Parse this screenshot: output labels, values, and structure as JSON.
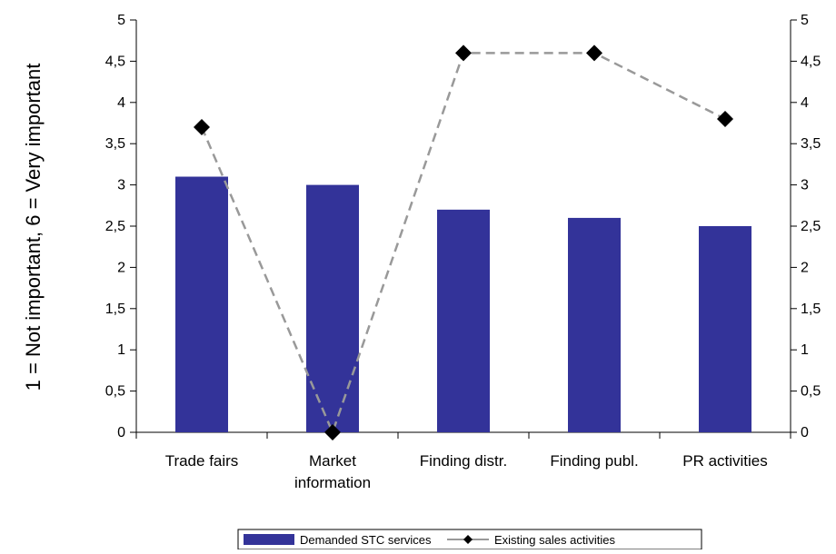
{
  "chart_data": {
    "type": "bar",
    "title": "",
    "ylabel": "1 = Not important,  6 = Very important",
    "xlabel": "",
    "categories": [
      [
        "Trade fairs"
      ],
      [
        "Market",
        "information"
      ],
      [
        "Finding distr."
      ],
      [
        "Finding publ."
      ],
      [
        "PR activities"
      ]
    ],
    "ylim": [
      0,
      5
    ],
    "y_ticks": [
      "0",
      "0,5",
      "1",
      "1,5",
      "2",
      "2,5",
      "3",
      "3,5",
      "4",
      "4,5",
      "5"
    ],
    "y2_ticks": [
      "0",
      "0,5",
      "1",
      "1,5",
      "2",
      "2,5",
      "3",
      "3,5",
      "4",
      "4,5",
      "5"
    ],
    "y2lim": [
      0,
      5
    ],
    "grid": false,
    "legend_position": "bottom",
    "series": [
      {
        "name": "Demanded STC services",
        "type": "bar",
        "color": "#333399",
        "values": [
          3.1,
          3.0,
          2.7,
          2.6,
          2.5
        ]
      },
      {
        "name": "Existing sales activities",
        "type": "line",
        "line_style": "dashed",
        "line_color": "#999999",
        "marker": "diamond",
        "marker_color": "#000000",
        "values": [
          3.7,
          0.0,
          4.6,
          4.6,
          3.8
        ]
      }
    ]
  }
}
